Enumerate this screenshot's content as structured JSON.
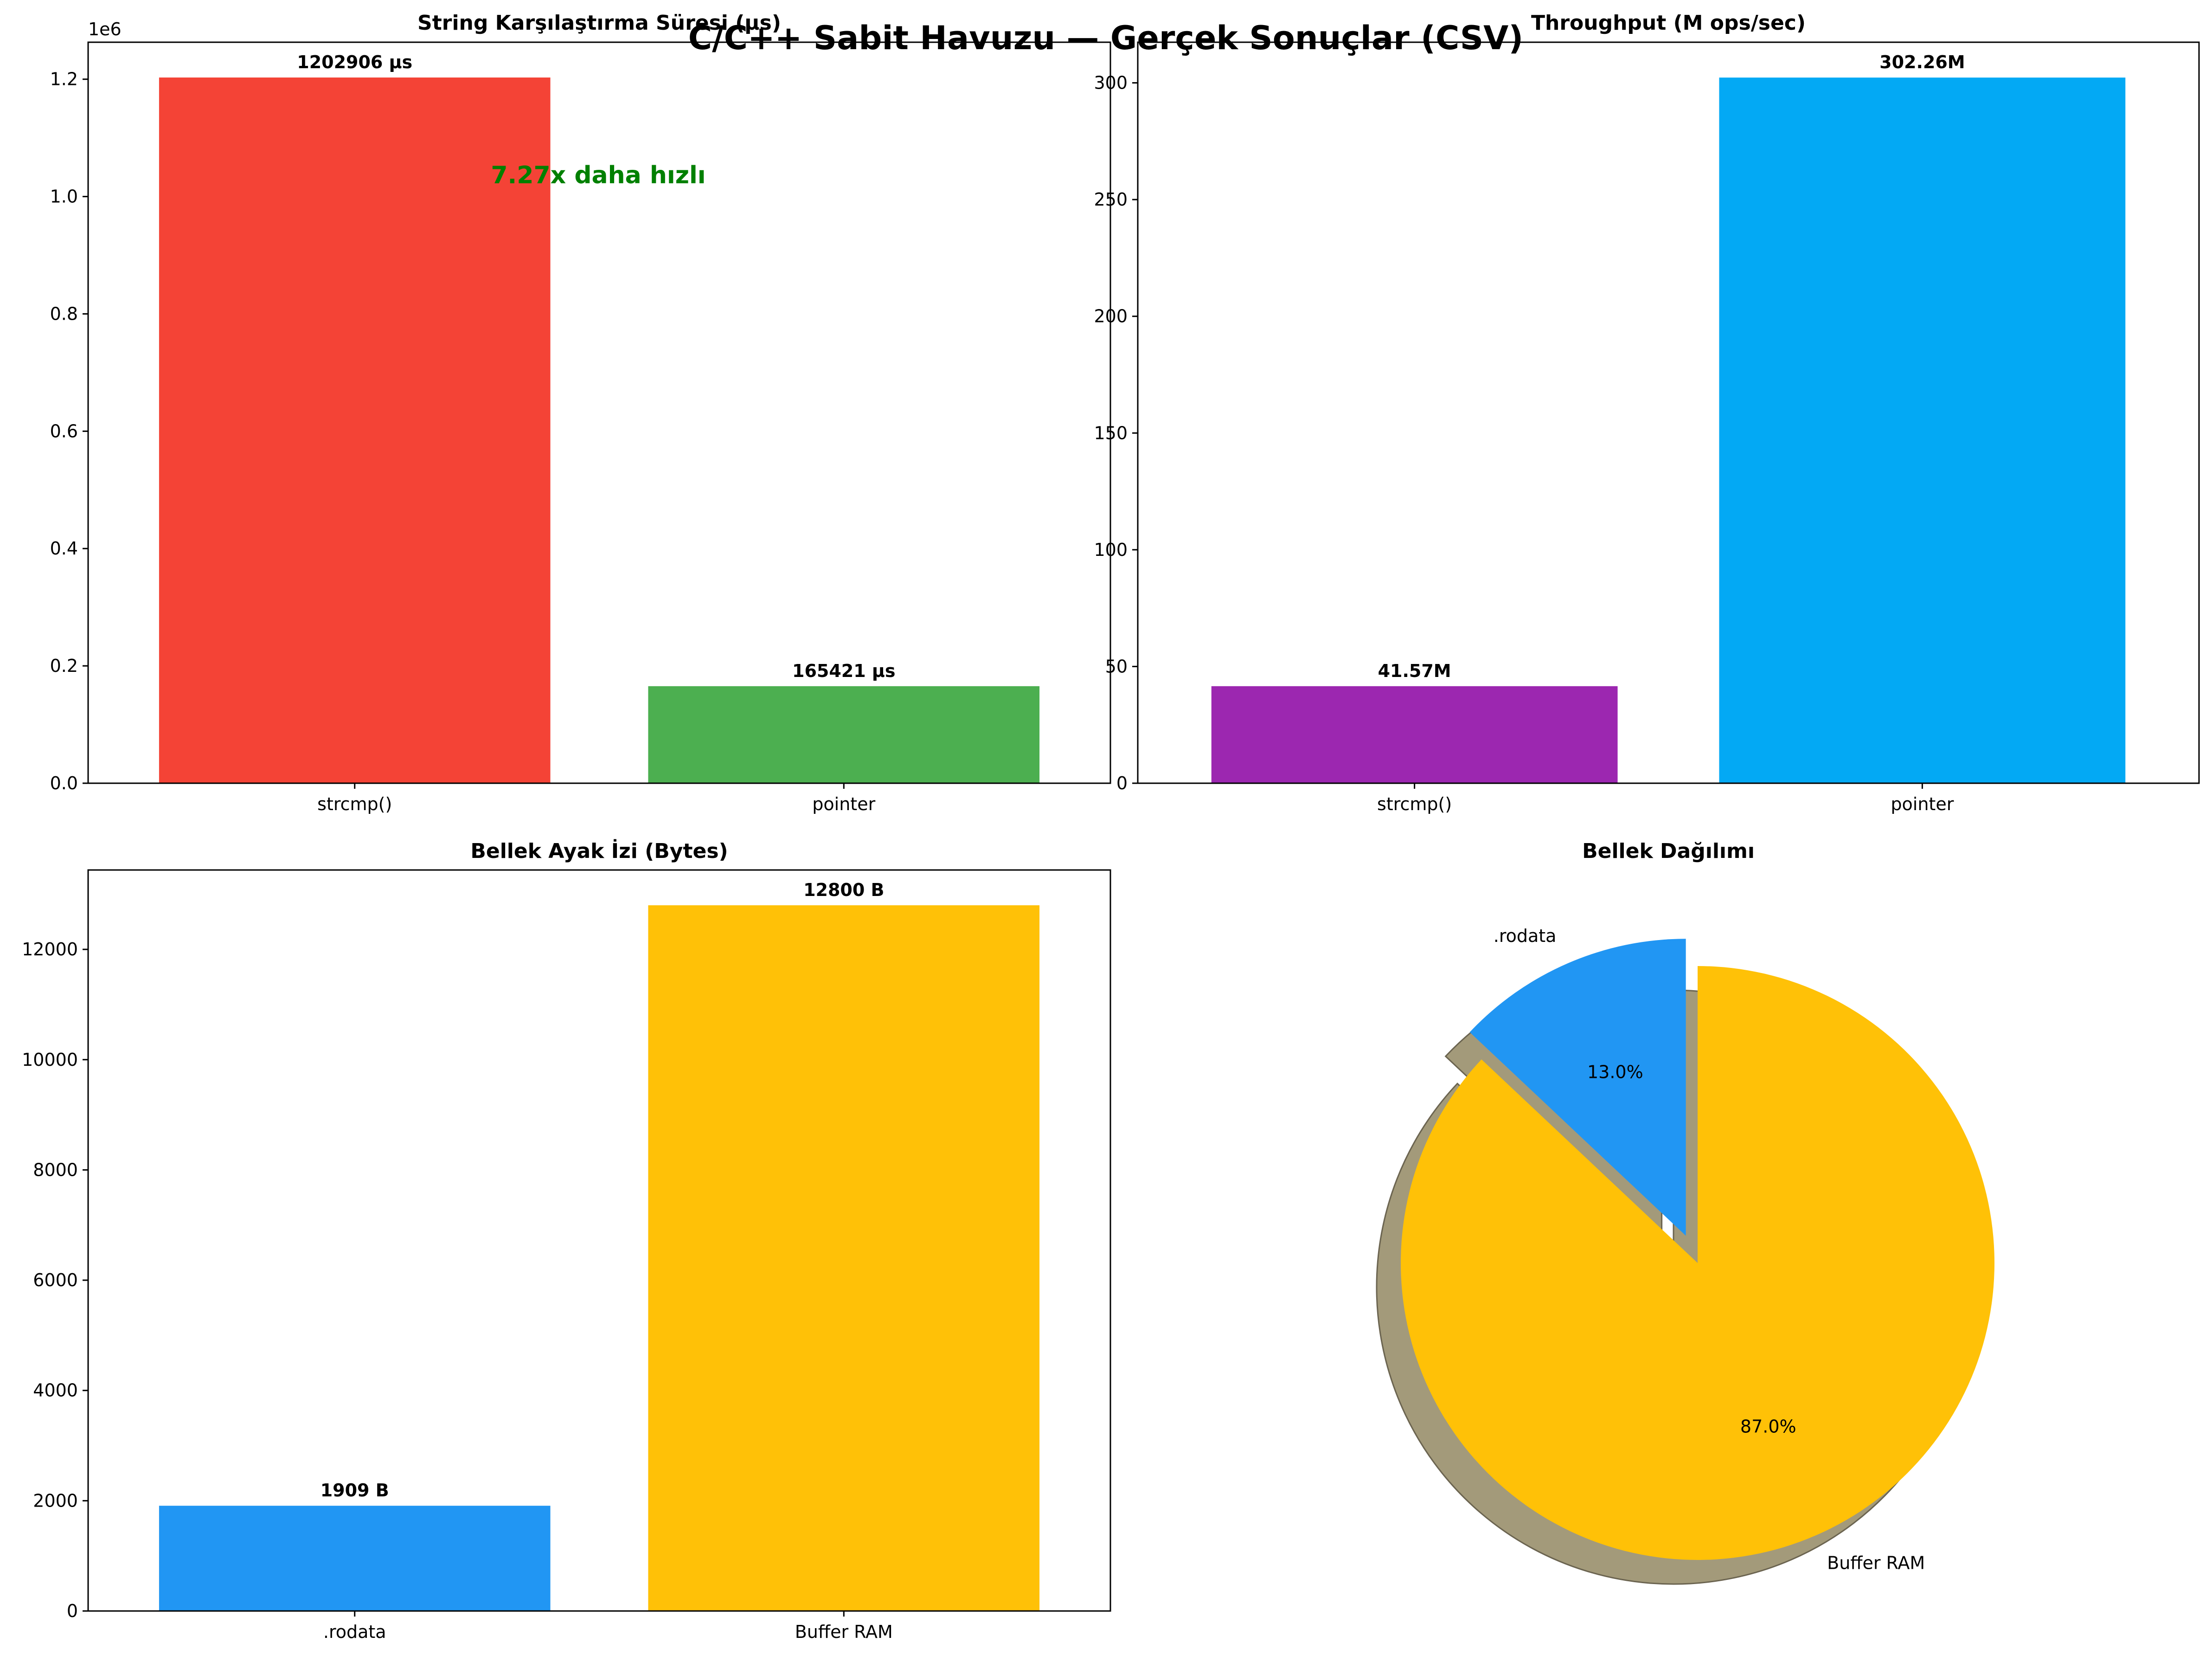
{
  "figure": {
    "suptitle": "C/C++ Sabit Havuzu — Gerçek Sonuçlar (CSV)"
  },
  "chart_data": [
    {
      "type": "bar",
      "title": "String Karşılaştırma Süresi (µs)",
      "categories": [
        "strcmp()",
        "pointer"
      ],
      "values": [
        1202906,
        165421
      ],
      "value_labels": [
        "1202906 µs",
        "165421 µs"
      ],
      "colors": [
        "#F44336",
        "#4CAF50"
      ],
      "ylim": [
        0,
        1263051
      ],
      "yticks": [
        0,
        200000,
        400000,
        600000,
        800000,
        1000000,
        1200000
      ],
      "ytick_labels": [
        "0.0",
        "0.2",
        "0.4",
        "0.6",
        "0.8",
        "1.0",
        "1.2"
      ],
      "offset_text": "1e6",
      "annotation": "7.27x daha hızlı",
      "annotation_color": "#008000",
      "grid": false
    },
    {
      "type": "bar",
      "title": "Throughput (M ops/sec)",
      "categories": [
        "strcmp()",
        "pointer"
      ],
      "values": [
        41.57,
        302.26
      ],
      "value_labels": [
        "41.57M",
        "302.26M"
      ],
      "colors": [
        "#9C27B0",
        "#03A9F4"
      ],
      "ylim": [
        0,
        317.4
      ],
      "yticks": [
        0,
        50,
        100,
        150,
        200,
        250,
        300
      ],
      "ytick_labels": [
        "0",
        "50",
        "100",
        "150",
        "200",
        "250",
        "300"
      ],
      "grid": false
    },
    {
      "type": "bar",
      "title": "Bellek Ayak İzi (Bytes)",
      "categories": [
        ".rodata",
        "Buffer RAM"
      ],
      "values": [
        1909,
        12800
      ],
      "value_labels": [
        "1909 B",
        "12800 B"
      ],
      "colors": [
        "#2196F3",
        "#FFC107"
      ],
      "ylim": [
        0,
        13440
      ],
      "yticks": [
        0,
        2000,
        4000,
        6000,
        8000,
        10000,
        12000
      ],
      "ytick_labels": [
        "0",
        "2000",
        "4000",
        "6000",
        "8000",
        "10000",
        "12000"
      ],
      "grid": false
    },
    {
      "type": "pie",
      "title": "Bellek Dağılımı",
      "labels": [
        ".rodata",
        "Buffer RAM"
      ],
      "values": [
        1909,
        12800
      ],
      "percent_labels": [
        "13.0%",
        "87.0%"
      ],
      "colors": [
        "#2196F3",
        "#FFC107"
      ],
      "shadow": true,
      "exploded": ".rodata",
      "start_angle_deg": 90
    }
  ]
}
